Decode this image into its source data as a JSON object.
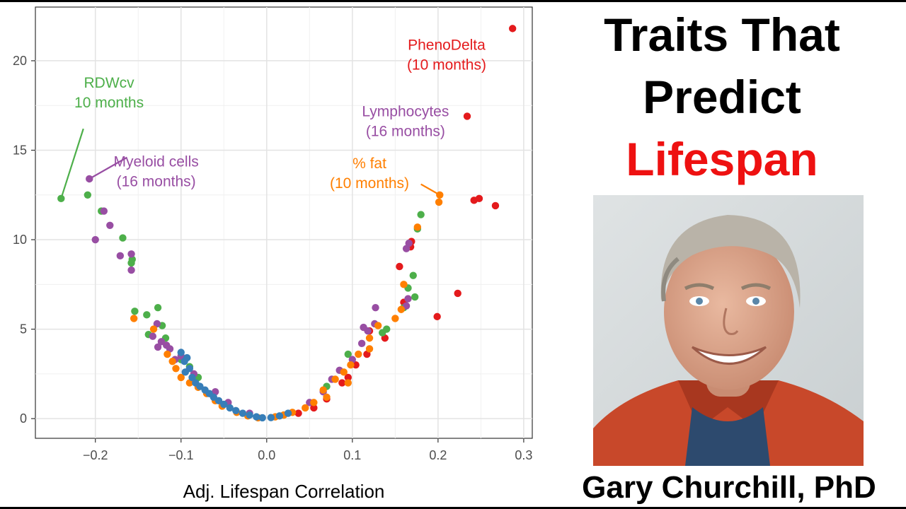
{
  "headline": {
    "line1": "Traits That",
    "line2": "Predict",
    "line3": "Lifespan",
    "highlight_color": "#ee1111"
  },
  "speaker": {
    "name": "Gary Churchill, PhD",
    "photo_icon": "person-portrait-icon"
  },
  "chart_data": {
    "type": "scatter",
    "title": "",
    "xlabel": "Adj. Lifespan Correlation",
    "ylabel": "",
    "xlim": [
      -0.27,
      0.31
    ],
    "ylim": [
      -1.1,
      23
    ],
    "grid": true,
    "legend": "none",
    "x_ticks": [
      -0.2,
      -0.1,
      0.0,
      0.1,
      0.2,
      0.3
    ],
    "x_tick_labels": [
      "−0.2",
      "−0.1",
      "0.0",
      "0.1",
      "0.2",
      "0.3"
    ],
    "y_ticks": [
      0,
      5,
      10,
      15,
      20
    ],
    "y_tick_labels": [
      "0",
      "5",
      "10",
      "15",
      "20"
    ],
    "colors": {
      "red": "#e41a1c",
      "green": "#4daf4a",
      "purple": "#984ea3",
      "orange": "#ff7f00",
      "blue": "#377eb8"
    },
    "series": [
      {
        "color_key": "red",
        "points": [
          [
            0.287,
            21.8
          ],
          [
            0.234,
            16.9
          ],
          [
            0.242,
            12.2
          ],
          [
            0.248,
            12.3
          ],
          [
            0.267,
            11.9
          ],
          [
            0.223,
            7.0
          ],
          [
            0.199,
            5.7
          ],
          [
            0.169,
            9.9
          ],
          [
            0.168,
            9.6
          ],
          [
            0.155,
            8.5
          ],
          [
            0.16,
            6.5
          ],
          [
            0.138,
            4.5
          ],
          [
            0.117,
            3.6
          ],
          [
            0.104,
            3.0
          ],
          [
            0.095,
            2.3
          ],
          [
            0.088,
            2.0
          ],
          [
            0.07,
            1.1
          ],
          [
            0.055,
            0.6
          ],
          [
            0.12,
            4.9
          ],
          [
            0.037,
            0.3
          ]
        ]
      },
      {
        "color_key": "green",
        "points": [
          [
            -0.24,
            12.3
          ],
          [
            -0.209,
            12.5
          ],
          [
            -0.193,
            11.6
          ],
          [
            -0.168,
            10.1
          ],
          [
            -0.157,
            8.9
          ],
          [
            -0.158,
            8.7
          ],
          [
            -0.154,
            6.0
          ],
          [
            -0.14,
            5.8
          ],
          [
            -0.127,
            6.2
          ],
          [
            -0.138,
            4.7
          ],
          [
            -0.118,
            4.5
          ],
          [
            -0.122,
            5.2
          ],
          [
            -0.1,
            3.3
          ],
          [
            -0.09,
            2.9
          ],
          [
            -0.08,
            2.3
          ],
          [
            0.18,
            11.4
          ],
          [
            0.176,
            10.6
          ],
          [
            0.171,
            8.0
          ],
          [
            0.165,
            7.3
          ],
          [
            0.173,
            6.8
          ],
          [
            0.16,
            6.2
          ],
          [
            0.135,
            4.8
          ],
          [
            0.14,
            5.0
          ],
          [
            0.095,
            3.6
          ],
          [
            0.07,
            1.8
          ],
          [
            0.02,
            0.2
          ]
        ]
      },
      {
        "color_key": "purple",
        "points": [
          [
            -0.207,
            13.4
          ],
          [
            -0.19,
            11.6
          ],
          [
            -0.2,
            10.0
          ],
          [
            -0.183,
            10.8
          ],
          [
            -0.171,
            9.1
          ],
          [
            -0.158,
            9.2
          ],
          [
            -0.158,
            8.3
          ],
          [
            -0.128,
            5.3
          ],
          [
            -0.133,
            4.6
          ],
          [
            -0.117,
            4.1
          ],
          [
            -0.113,
            3.9
          ],
          [
            -0.127,
            4.0
          ],
          [
            -0.123,
            4.3
          ],
          [
            -0.1,
            3.5
          ],
          [
            -0.107,
            3.3
          ],
          [
            -0.085,
            2.5
          ],
          [
            -0.06,
            1.5
          ],
          [
            -0.045,
            0.9
          ],
          [
            -0.02,
            0.3
          ],
          [
            0.166,
            9.8
          ],
          [
            0.163,
            9.5
          ],
          [
            0.165,
            6.7
          ],
          [
            0.163,
            6.3
          ],
          [
            0.127,
            6.2
          ],
          [
            0.126,
            5.3
          ],
          [
            0.113,
            5.1
          ],
          [
            0.118,
            4.9
          ],
          [
            0.111,
            4.2
          ],
          [
            0.1,
            3.3
          ],
          [
            0.085,
            2.7
          ],
          [
            0.076,
            2.2
          ],
          [
            0.066,
            1.5
          ],
          [
            0.05,
            0.9
          ]
        ]
      },
      {
        "color_key": "orange",
        "points": [
          [
            0.202,
            12.5
          ],
          [
            0.201,
            12.1
          ],
          [
            0.176,
            10.7
          ],
          [
            0.16,
            7.5
          ],
          [
            0.157,
            6.1
          ],
          [
            0.15,
            5.6
          ],
          [
            0.13,
            5.2
          ],
          [
            0.12,
            4.5
          ],
          [
            0.12,
            3.9
          ],
          [
            0.107,
            3.6
          ],
          [
            0.098,
            3.0
          ],
          [
            0.09,
            2.6
          ],
          [
            0.08,
            2.2
          ],
          [
            0.095,
            2.0
          ],
          [
            0.066,
            1.6
          ],
          [
            0.07,
            1.2
          ],
          [
            0.055,
            0.9
          ],
          [
            0.045,
            0.6
          ],
          [
            0.03,
            0.35
          ],
          [
            0.02,
            0.2
          ],
          [
            0.01,
            0.1
          ],
          [
            -0.01,
            0.05
          ],
          [
            -0.022,
            0.15
          ],
          [
            -0.035,
            0.35
          ],
          [
            -0.052,
            0.7
          ],
          [
            -0.06,
            1.0
          ],
          [
            -0.07,
            1.4
          ],
          [
            -0.08,
            1.75
          ],
          [
            -0.09,
            2.0
          ],
          [
            -0.1,
            2.3
          ],
          [
            -0.106,
            2.8
          ],
          [
            -0.11,
            3.2
          ],
          [
            -0.116,
            3.6
          ],
          [
            -0.132,
            5.0
          ],
          [
            -0.155,
            5.6
          ]
        ]
      },
      {
        "color_key": "blue",
        "points": [
          [
            -0.1,
            3.7
          ],
          [
            -0.093,
            3.4
          ],
          [
            -0.096,
            3.2
          ],
          [
            -0.09,
            2.8
          ],
          [
            -0.095,
            2.6
          ],
          [
            -0.087,
            2.3
          ],
          [
            -0.083,
            2.0
          ],
          [
            -0.078,
            1.8
          ],
          [
            -0.072,
            1.6
          ],
          [
            -0.067,
            1.4
          ],
          [
            -0.062,
            1.2
          ],
          [
            -0.056,
            1.0
          ],
          [
            -0.05,
            0.8
          ],
          [
            -0.043,
            0.6
          ],
          [
            -0.036,
            0.45
          ],
          [
            -0.028,
            0.3
          ],
          [
            -0.02,
            0.2
          ],
          [
            -0.012,
            0.1
          ],
          [
            -0.005,
            0.05
          ],
          [
            0.005,
            0.06
          ],
          [
            0.015,
            0.15
          ],
          [
            0.025,
            0.3
          ]
        ]
      }
    ],
    "annotations": [
      {
        "id": "phenodelta",
        "lines": [
          "PhenoDelta",
          "(10 months)"
        ],
        "color_key": "red",
        "x": 0.21,
        "y": 20.6
      },
      {
        "id": "lymphocytes",
        "lines": [
          "Lymphocytes",
          "(16 months)"
        ],
        "color_key": "purple",
        "x": 0.162,
        "y": 16.9
      },
      {
        "id": "pct-fat",
        "lines": [
          "% fat",
          "(10 months)"
        ],
        "color_key": "orange",
        "x": 0.12,
        "y": 14.0,
        "pointer_to": [
          0.202,
          12.5
        ],
        "pointer_from": [
          0.18,
          13.1
        ]
      },
      {
        "id": "rdwcv",
        "lines": [
          "RDWcv",
          "10 months"
        ],
        "color_key": "green",
        "x": -0.184,
        "y": 18.5,
        "pointer_to": [
          -0.24,
          12.3
        ],
        "pointer_from": [
          -0.214,
          16.2
        ]
      },
      {
        "id": "myeloid",
        "lines": [
          "Myeloid cells",
          "(16 months)"
        ],
        "color_key": "purple",
        "x": -0.129,
        "y": 14.1,
        "pointer_to": [
          -0.207,
          13.4
        ],
        "pointer_from": [
          -0.163,
          14.6
        ]
      }
    ]
  }
}
